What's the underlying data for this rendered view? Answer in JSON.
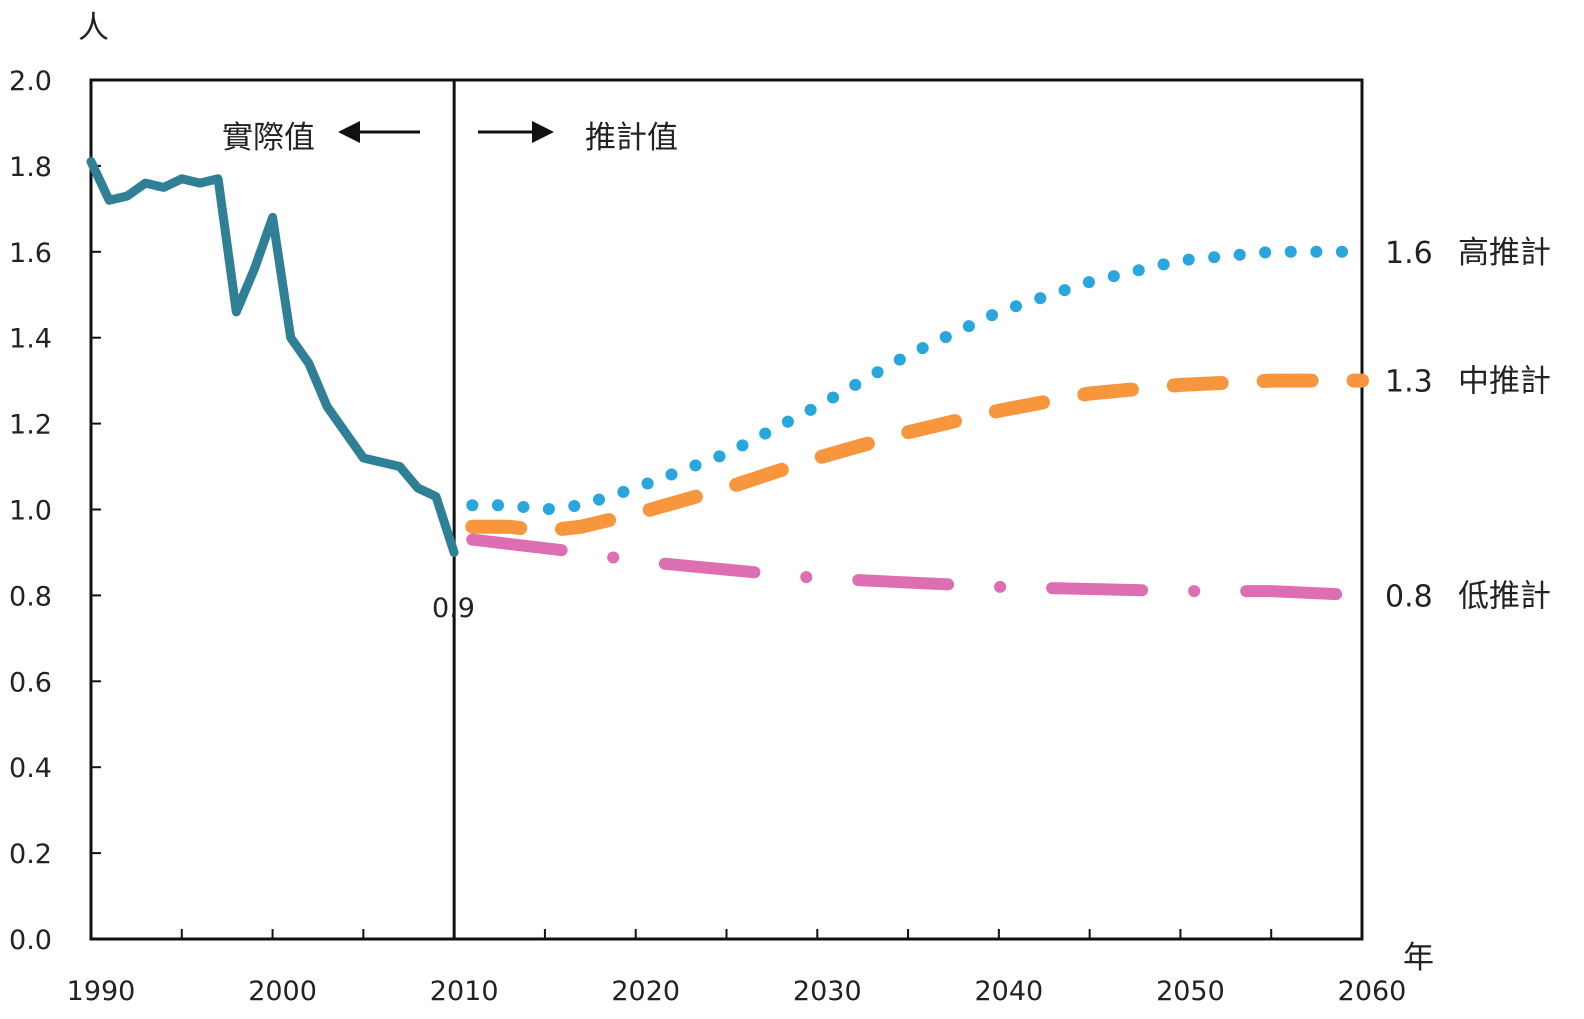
{
  "chart_data": {
    "type": "line",
    "title": "",
    "xlabel": "年",
    "ylabel": "人",
    "xlim": [
      1990,
      2060
    ],
    "ylim": [
      0,
      2.0
    ],
    "xticks": [
      "1990",
      "2000",
      "2010",
      "2020",
      "2030",
      "2040",
      "2050",
      "2060"
    ],
    "yticks": [
      "0.0",
      "0.2",
      "0.4",
      "0.6",
      "0.8",
      "1.0",
      "1.2",
      "1.4",
      "1.6",
      "1.8",
      "2.0"
    ],
    "grid": false,
    "divider": {
      "x": 2010,
      "left_label": "實際值",
      "right_label": "推計值"
    },
    "point_label": {
      "x": 2010,
      "y": 0.9,
      "text": "0.9"
    },
    "series": [
      {
        "name": "",
        "style": "solid",
        "color": "#2f7f97",
        "x": [
          1990,
          1991,
          1992,
          1993,
          1994,
          1995,
          1996,
          1997,
          1998,
          1999,
          2000,
          2001,
          2002,
          2003,
          2004,
          2005,
          2006,
          2007,
          2008,
          2009,
          2010
        ],
        "y": [
          1.81,
          1.72,
          1.73,
          1.76,
          1.75,
          1.77,
          1.76,
          1.77,
          1.46,
          1.56,
          1.68,
          1.4,
          1.34,
          1.24,
          1.18,
          1.12,
          1.11,
          1.1,
          1.05,
          1.03,
          0.9
        ]
      },
      {
        "name": "高推計",
        "end_value": "1.6",
        "style": "dotted",
        "color": "#29a6dd",
        "x": [
          2011,
          2013,
          2015,
          2017,
          2020,
          2025,
          2030,
          2035,
          2040,
          2045,
          2050,
          2055,
          2060
        ],
        "y": [
          1.01,
          1.01,
          1.0,
          1.01,
          1.05,
          1.13,
          1.24,
          1.36,
          1.46,
          1.53,
          1.58,
          1.6,
          1.6
        ]
      },
      {
        "name": "中推計",
        "end_value": "1.3",
        "style": "dashed",
        "color": "#f7963d",
        "x": [
          2011,
          2013,
          2015,
          2017,
          2020,
          2025,
          2030,
          2035,
          2040,
          2045,
          2050,
          2055,
          2060
        ],
        "y": [
          0.96,
          0.96,
          0.95,
          0.96,
          0.99,
          1.05,
          1.12,
          1.18,
          1.23,
          1.27,
          1.29,
          1.3,
          1.3
        ]
      },
      {
        "name": "低推計",
        "end_value": "0.8",
        "style": "dashdot",
        "color": "#de6eb2",
        "x": [
          2011,
          2013,
          2015,
          2017,
          2020,
          2025,
          2030,
          2035,
          2040,
          2045,
          2050,
          2055,
          2060
        ],
        "y": [
          0.93,
          0.92,
          0.91,
          0.9,
          0.88,
          0.86,
          0.84,
          0.83,
          0.82,
          0.815,
          0.81,
          0.81,
          0.8
        ]
      }
    ]
  }
}
